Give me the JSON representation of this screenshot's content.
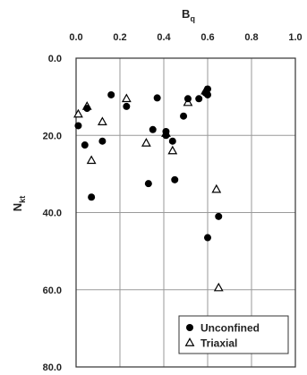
{
  "chart_data": {
    "type": "scatter",
    "xlabel_main": "B",
    "xlabel_sub": "q",
    "ylabel_main": "N",
    "ylabel_sub": "kt",
    "x_axis_position": "top",
    "y_axis_inverted": true,
    "xlim": [
      0.0,
      1.0
    ],
    "ylim": [
      0.0,
      80.0
    ],
    "xticks": [
      "0.0",
      "0.2",
      "0.4",
      "0.6",
      "0.8",
      "1.0"
    ],
    "yticks": [
      "0.0",
      "20.0",
      "40.0",
      "60.0",
      "80.0"
    ],
    "grid": true,
    "legend_position": "bottom-right",
    "series": [
      {
        "name": "Unconfined",
        "marker": "filled-circle",
        "color": "#000000",
        "points": [
          {
            "x": 0.01,
            "y": 17.5
          },
          {
            "x": 0.04,
            "y": 22.5
          },
          {
            "x": 0.05,
            "y": 13.0
          },
          {
            "x": 0.07,
            "y": 36.0
          },
          {
            "x": 0.12,
            "y": 21.5
          },
          {
            "x": 0.16,
            "y": 9.5
          },
          {
            "x": 0.23,
            "y": 12.5
          },
          {
            "x": 0.33,
            "y": 32.5
          },
          {
            "x": 0.35,
            "y": 18.5
          },
          {
            "x": 0.37,
            "y": 10.3
          },
          {
            "x": 0.41,
            "y": 19.0
          },
          {
            "x": 0.41,
            "y": 20.0
          },
          {
            "x": 0.44,
            "y": 21.5
          },
          {
            "x": 0.45,
            "y": 31.5
          },
          {
            "x": 0.49,
            "y": 15.0
          },
          {
            "x": 0.51,
            "y": 10.5
          },
          {
            "x": 0.56,
            "y": 10.5
          },
          {
            "x": 0.59,
            "y": 9.0
          },
          {
            "x": 0.6,
            "y": 8.0
          },
          {
            "x": 0.6,
            "y": 9.5
          },
          {
            "x": 0.6,
            "y": 46.5
          },
          {
            "x": 0.65,
            "y": 41.0
          }
        ]
      },
      {
        "name": "Triaxial",
        "marker": "open-triangle",
        "color": "#000000",
        "points": [
          {
            "x": 0.01,
            "y": 14.5
          },
          {
            "x": 0.05,
            "y": 12.5
          },
          {
            "x": 0.07,
            "y": 26.5
          },
          {
            "x": 0.12,
            "y": 16.5
          },
          {
            "x": 0.23,
            "y": 10.5
          },
          {
            "x": 0.32,
            "y": 22.0
          },
          {
            "x": 0.41,
            "y": 19.5
          },
          {
            "x": 0.44,
            "y": 24.0
          },
          {
            "x": 0.51,
            "y": 11.5
          },
          {
            "x": 0.59,
            "y": 8.5
          },
          {
            "x": 0.64,
            "y": 34.0
          },
          {
            "x": 0.65,
            "y": 59.5
          }
        ]
      }
    ]
  }
}
